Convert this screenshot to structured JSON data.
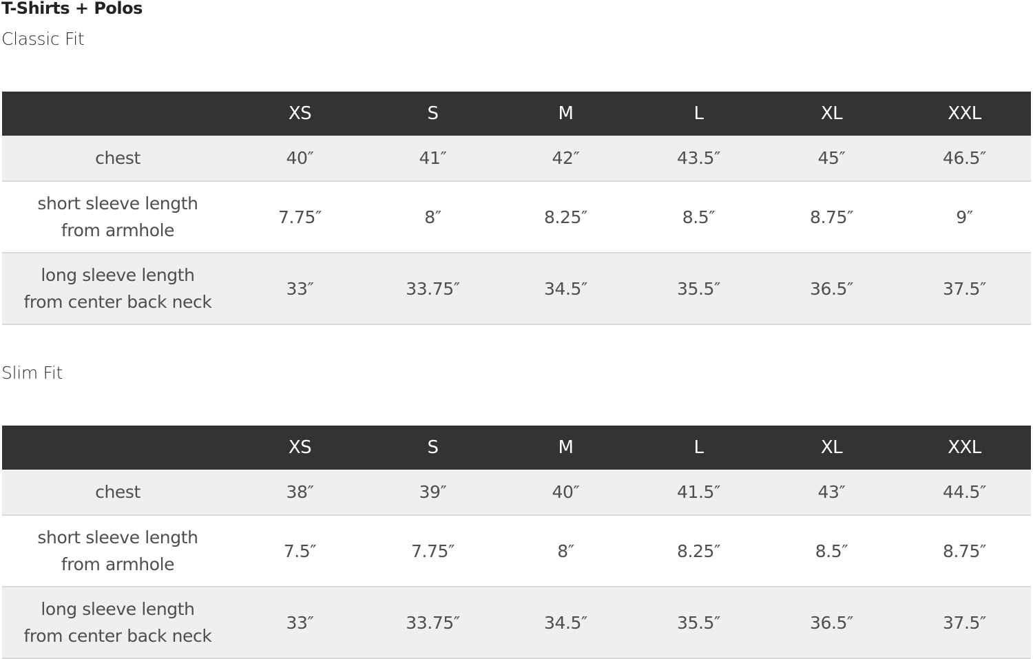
{
  "title": "T-Shirts + Polos",
  "sizes": [
    "XS",
    "S",
    "M",
    "L",
    "XL",
    "XXL"
  ],
  "tables": [
    {
      "name": "Classic Fit",
      "rows": [
        {
          "label_lines": [
            "chest"
          ],
          "values": [
            "40″",
            "41″",
            "42″",
            "43.5″",
            "45″",
            "46.5″"
          ]
        },
        {
          "label_lines": [
            "short sleeve length",
            "from armhole"
          ],
          "values": [
            "7.75″",
            "8″",
            "8.25″",
            "8.5″",
            "8.75″",
            "9″"
          ]
        },
        {
          "label_lines": [
            "long sleeve length",
            "from center back neck"
          ],
          "values": [
            "33″",
            "33.75″",
            "34.5″",
            "35.5″",
            "36.5″",
            "37.5″"
          ]
        }
      ]
    },
    {
      "name": "Slim Fit",
      "rows": [
        {
          "label_lines": [
            "chest"
          ],
          "values": [
            "38″",
            "39″",
            "40″",
            "41.5″",
            "43″",
            "44.5″"
          ]
        },
        {
          "label_lines": [
            "short sleeve length",
            "from armhole"
          ],
          "values": [
            "7.5″",
            "7.75″",
            "8″",
            "8.25″",
            "8.5″",
            "8.75″"
          ]
        },
        {
          "label_lines": [
            "long sleeve length",
            "from center back neck"
          ],
          "values": [
            "33″",
            "33.75″",
            "34.5″",
            "35.5″",
            "36.5″",
            "37.5″"
          ]
        }
      ]
    }
  ],
  "colors": {
    "header_bg": "#333333",
    "row_alt": "#efefef",
    "divider": "#d9d9d9"
  }
}
